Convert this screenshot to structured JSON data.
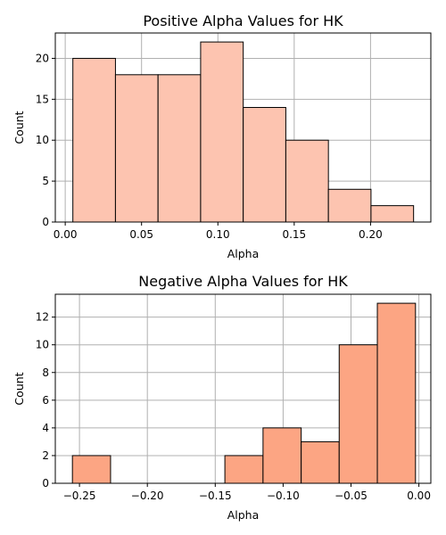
{
  "chart_data": [
    {
      "type": "bar",
      "title": "Positive Alpha Values for HK",
      "xlabel": "Alpha",
      "ylabel": "Count",
      "bar_color": "#fdc4b0",
      "xlim": [
        -0.0065,
        0.2395
      ],
      "ylim": [
        0,
        23.1
      ],
      "xticks": [
        0.0,
        0.05,
        0.1,
        0.15,
        0.2
      ],
      "xtick_labels": [
        "0.00",
        "0.05",
        "0.10",
        "0.15",
        "0.20"
      ],
      "yticks": [
        0,
        5,
        10,
        15,
        20
      ],
      "ytick_labels": [
        "0",
        "5",
        "10",
        "15",
        "20"
      ],
      "grid": true,
      "bins": [
        {
          "x0": 0.005,
          "x1": 0.0329,
          "count": 20
        },
        {
          "x0": 0.0329,
          "x1": 0.0608,
          "count": 18
        },
        {
          "x0": 0.0608,
          "x1": 0.0887,
          "count": 18
        },
        {
          "x0": 0.0887,
          "x1": 0.1166,
          "count": 22
        },
        {
          "x0": 0.1166,
          "x1": 0.1445,
          "count": 14
        },
        {
          "x0": 0.1445,
          "x1": 0.1724,
          "count": 10
        },
        {
          "x0": 0.1724,
          "x1": 0.2003,
          "count": 4
        },
        {
          "x0": 0.2003,
          "x1": 0.2282,
          "count": 2
        }
      ]
    },
    {
      "type": "bar",
      "title": "Negative Alpha Values for HK",
      "xlabel": "Alpha",
      "ylabel": "Count",
      "bar_color": "#fca583",
      "xlim": [
        -0.2678,
        0.0088
      ],
      "ylim": [
        0,
        13.65
      ],
      "xticks": [
        -0.25,
        -0.2,
        -0.15,
        -0.1,
        -0.05,
        0.0
      ],
      "xtick_labels": [
        "−0.25",
        "−0.20",
        "−0.15",
        "−0.10",
        "−0.05",
        "0.00"
      ],
      "yticks": [
        0,
        2,
        4,
        6,
        8,
        10,
        12
      ],
      "ytick_labels": [
        "0",
        "2",
        "4",
        "6",
        "8",
        "10",
        "12"
      ],
      "grid": true,
      "bins": [
        {
          "x0": -0.2552,
          "x1": -0.2271,
          "count": 2
        },
        {
          "x0": -0.2271,
          "x1": -0.1991,
          "count": 0
        },
        {
          "x0": -0.1991,
          "x1": -0.171,
          "count": 0
        },
        {
          "x0": -0.171,
          "x1": -0.1429,
          "count": 0
        },
        {
          "x0": -0.1429,
          "x1": -0.1148,
          "count": 2
        },
        {
          "x0": -0.1148,
          "x1": -0.0867,
          "count": 4
        },
        {
          "x0": -0.0867,
          "x1": -0.0587,
          "count": 3
        },
        {
          "x0": -0.0587,
          "x1": -0.0306,
          "count": 10
        },
        {
          "x0": -0.0306,
          "x1": -0.0025,
          "count": 13
        }
      ]
    }
  ]
}
